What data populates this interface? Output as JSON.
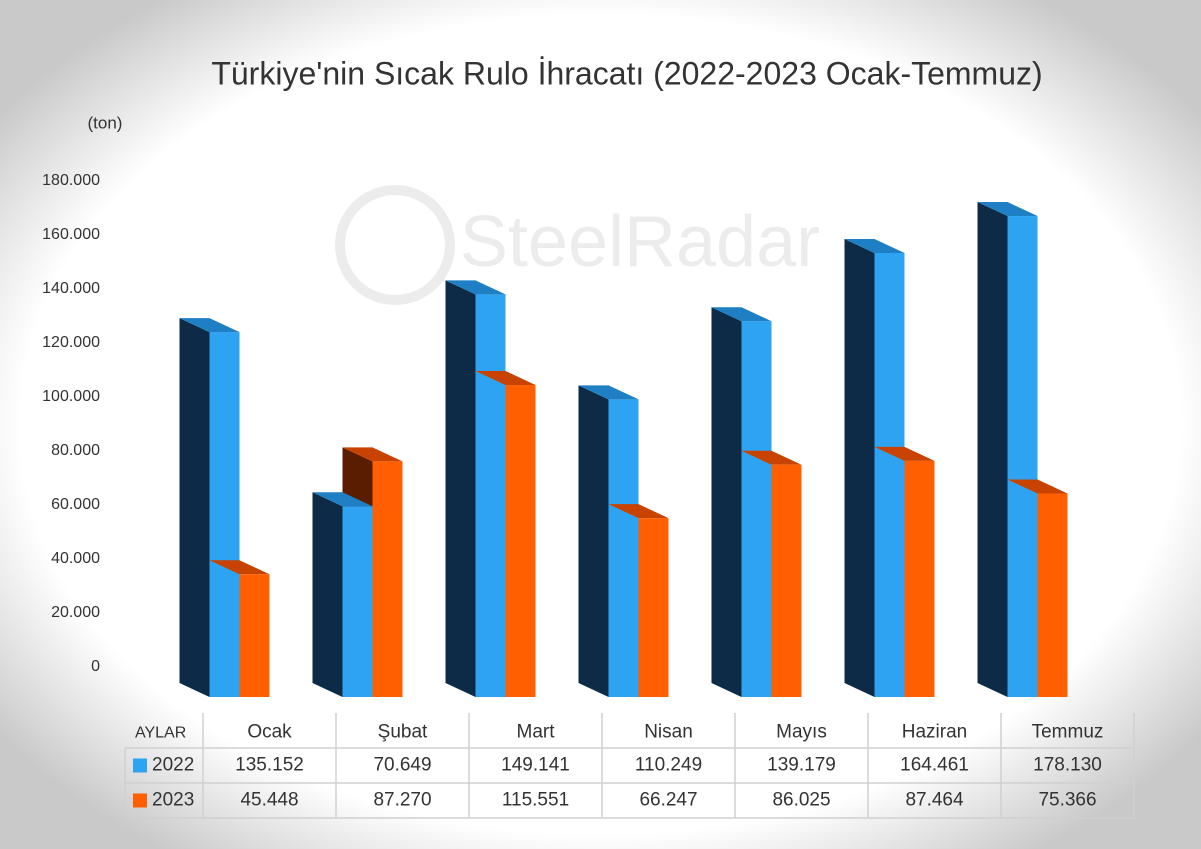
{
  "chart_data": {
    "type": "bar3d",
    "title": "Türkiye'nin Sıcak Rulo İhracatı (2022-2023 Ocak-Temmuz)",
    "y_unit": "(ton)",
    "watermark": "SteelRadar",
    "table_header": "AYLAR",
    "categories": [
      "Ocak",
      "Şubat",
      "Mart",
      "Nisan",
      "Mayıs",
      "Haziran",
      "Temmuz"
    ],
    "series": [
      {
        "name": "2022",
        "color": "#2ea3f2",
        "side_color": "#0d2b47",
        "values": [
          135152,
          70649,
          149141,
          110249,
          139179,
          164461,
          178130
        ],
        "value_labels": [
          "135.152",
          "70.649",
          "149.141",
          "110.249",
          "139.179",
          "164.461",
          "178.130"
        ]
      },
      {
        "name": "2023",
        "color": "#ff5f00",
        "side_color": "#5a1d00",
        "values": [
          45448,
          87270,
          115551,
          66247,
          86025,
          87464,
          75366
        ],
        "value_labels": [
          "45.448",
          "87.270",
          "115.551",
          "66.247",
          "86.025",
          "87.464",
          "75.366"
        ]
      }
    ],
    "ylim": [
      0,
      180000
    ],
    "yticks": [
      0,
      {
        "value": 20000,
        "label": "20.000"
      },
      {
        "value": 40000,
        "label": "40.000"
      },
      {
        "value": 60000,
        "label": "60.000"
      },
      {
        "value": 80000,
        "label": "80.000"
      },
      {
        "value": 100000,
        "label": "100.000"
      },
      {
        "value": 120000,
        "label": "120.000"
      },
      {
        "value": 140000,
        "label": "140.000"
      },
      {
        "value": 160000,
        "label": "160.000"
      },
      {
        "value": 180000,
        "label": "180.000"
      }
    ]
  }
}
